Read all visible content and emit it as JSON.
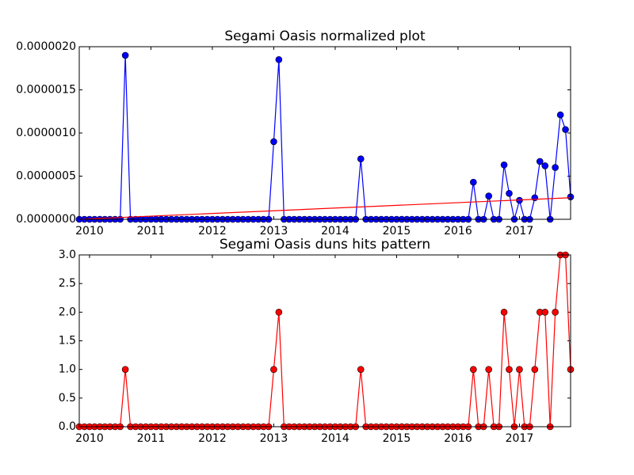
{
  "chart_data": [
    {
      "type": "line",
      "title": "Segami Oasis normalized plot",
      "x": [
        2009.833,
        2009.917,
        2010,
        2010.083,
        2010.167,
        2010.25,
        2010.333,
        2010.417,
        2010.5,
        2010.583,
        2010.667,
        2010.75,
        2010.833,
        2010.917,
        2011,
        2011.083,
        2011.167,
        2011.25,
        2011.333,
        2011.417,
        2011.5,
        2011.583,
        2011.667,
        2011.75,
        2011.833,
        2011.917,
        2012,
        2012.083,
        2012.167,
        2012.25,
        2012.333,
        2012.417,
        2012.5,
        2012.583,
        2012.667,
        2012.75,
        2012.833,
        2012.917,
        2013,
        2013.083,
        2013.167,
        2013.25,
        2013.333,
        2013.417,
        2013.5,
        2013.583,
        2013.667,
        2013.75,
        2013.833,
        2013.917,
        2014,
        2014.083,
        2014.167,
        2014.25,
        2014.333,
        2014.417,
        2014.5,
        2014.583,
        2014.667,
        2014.75,
        2014.833,
        2014.917,
        2015,
        2015.083,
        2015.167,
        2015.25,
        2015.333,
        2015.417,
        2015.5,
        2015.583,
        2015.667,
        2015.75,
        2015.833,
        2015.917,
        2016,
        2016.083,
        2016.167,
        2016.25,
        2016.333,
        2016.417,
        2016.5,
        2016.583,
        2016.667,
        2016.75,
        2016.833,
        2016.917,
        2017,
        2017.083,
        2017.167,
        2017.25,
        2017.333,
        2017.417,
        2017.5,
        2017.583,
        2017.667,
        2017.75,
        2017.833
      ],
      "series": [
        {
          "color": "#0000ff",
          "marker": true,
          "values": [
            0,
            0,
            0,
            0,
            0,
            0,
            0,
            0,
            0,
            1.9e-06,
            0,
            0,
            0,
            0,
            0,
            0,
            0,
            0,
            0,
            0,
            0,
            0,
            0,
            0,
            0,
            0,
            0,
            0,
            0,
            0,
            0,
            0,
            0,
            0,
            0,
            0,
            0,
            0,
            9e-07,
            1.85e-06,
            0,
            0,
            0,
            0,
            0,
            0,
            0,
            0,
            0,
            0,
            0,
            0,
            0,
            0,
            0,
            7e-07,
            0,
            0,
            0,
            0,
            0,
            0,
            0,
            0,
            0,
            0,
            0,
            0,
            0,
            0,
            0,
            0,
            0,
            0,
            0,
            0,
            0,
            4.3e-07,
            0,
            0,
            2.7e-07,
            0,
            0,
            6.3e-07,
            3e-07,
            0,
            2.2e-07,
            0,
            0,
            2.5e-07,
            6.7e-07,
            6.2e-07,
            0,
            6e-07,
            1.21e-06,
            1.04e-06,
            2.6e-07
          ]
        },
        {
          "color": "#ff0000",
          "marker": false,
          "x": [
            2009.833,
            2017.833
          ],
          "values": [
            0,
            2.5e-07
          ]
        }
      ],
      "xlim": [
        2009.833,
        2017.833
      ],
      "xticks": [
        2010,
        2011,
        2012,
        2013,
        2014,
        2015,
        2016,
        2017
      ],
      "ylim": [
        0,
        2e-06
      ],
      "yticks": [
        {
          "value": 0,
          "label": "0.0000000"
        },
        {
          "value": 5e-07,
          "label": "0.0000005"
        },
        {
          "value": 1e-06,
          "label": "0.0000010"
        },
        {
          "value": 1.5e-06,
          "label": "0.0000015"
        },
        {
          "value": 2e-06,
          "label": "0.0000020"
        }
      ]
    },
    {
      "type": "line",
      "title": "Segami Oasis duns hits pattern",
      "x": [
        2009.833,
        2009.917,
        2010,
        2010.083,
        2010.167,
        2010.25,
        2010.333,
        2010.417,
        2010.5,
        2010.583,
        2010.667,
        2010.75,
        2010.833,
        2010.917,
        2011,
        2011.083,
        2011.167,
        2011.25,
        2011.333,
        2011.417,
        2011.5,
        2011.583,
        2011.667,
        2011.75,
        2011.833,
        2011.917,
        2012,
        2012.083,
        2012.167,
        2012.25,
        2012.333,
        2012.417,
        2012.5,
        2012.583,
        2012.667,
        2012.75,
        2012.833,
        2012.917,
        2013,
        2013.083,
        2013.167,
        2013.25,
        2013.333,
        2013.417,
        2013.5,
        2013.583,
        2013.667,
        2013.75,
        2013.833,
        2013.917,
        2014,
        2014.083,
        2014.167,
        2014.25,
        2014.333,
        2014.417,
        2014.5,
        2014.583,
        2014.667,
        2014.75,
        2014.833,
        2014.917,
        2015,
        2015.083,
        2015.167,
        2015.25,
        2015.333,
        2015.417,
        2015.5,
        2015.583,
        2015.667,
        2015.75,
        2015.833,
        2015.917,
        2016,
        2016.083,
        2016.167,
        2016.25,
        2016.333,
        2016.417,
        2016.5,
        2016.583,
        2016.667,
        2016.75,
        2016.833,
        2016.917,
        2017,
        2017.083,
        2017.167,
        2017.25,
        2017.333,
        2017.417,
        2017.5,
        2017.583,
        2017.667,
        2017.75,
        2017.833
      ],
      "series": [
        {
          "color": "#ff0000",
          "marker": true,
          "values": [
            0,
            0,
            0,
            0,
            0,
            0,
            0,
            0,
            0,
            1,
            0,
            0,
            0,
            0,
            0,
            0,
            0,
            0,
            0,
            0,
            0,
            0,
            0,
            0,
            0,
            0,
            0,
            0,
            0,
            0,
            0,
            0,
            0,
            0,
            0,
            0,
            0,
            0,
            1,
            2,
            0,
            0,
            0,
            0,
            0,
            0,
            0,
            0,
            0,
            0,
            0,
            0,
            0,
            0,
            0,
            1,
            0,
            0,
            0,
            0,
            0,
            0,
            0,
            0,
            0,
            0,
            0,
            0,
            0,
            0,
            0,
            0,
            0,
            0,
            0,
            0,
            0,
            1,
            0,
            0,
            1,
            0,
            0,
            2,
            1,
            0,
            1,
            0,
            0,
            1,
            2,
            2,
            0,
            2,
            3,
            3,
            1
          ]
        }
      ],
      "xlim": [
        2009.833,
        2017.833
      ],
      "xticks": [
        2010,
        2011,
        2012,
        2013,
        2014,
        2015,
        2016,
        2017
      ],
      "ylim": [
        0,
        3
      ],
      "yticks": [
        {
          "value": 0,
          "label": "0.0"
        },
        0.5,
        {
          "value": 1,
          "label": "1.0"
        },
        1.5,
        {
          "value": 2,
          "label": "2.0"
        },
        2.5,
        {
          "value": 3,
          "label": "3.0"
        }
      ]
    }
  ]
}
